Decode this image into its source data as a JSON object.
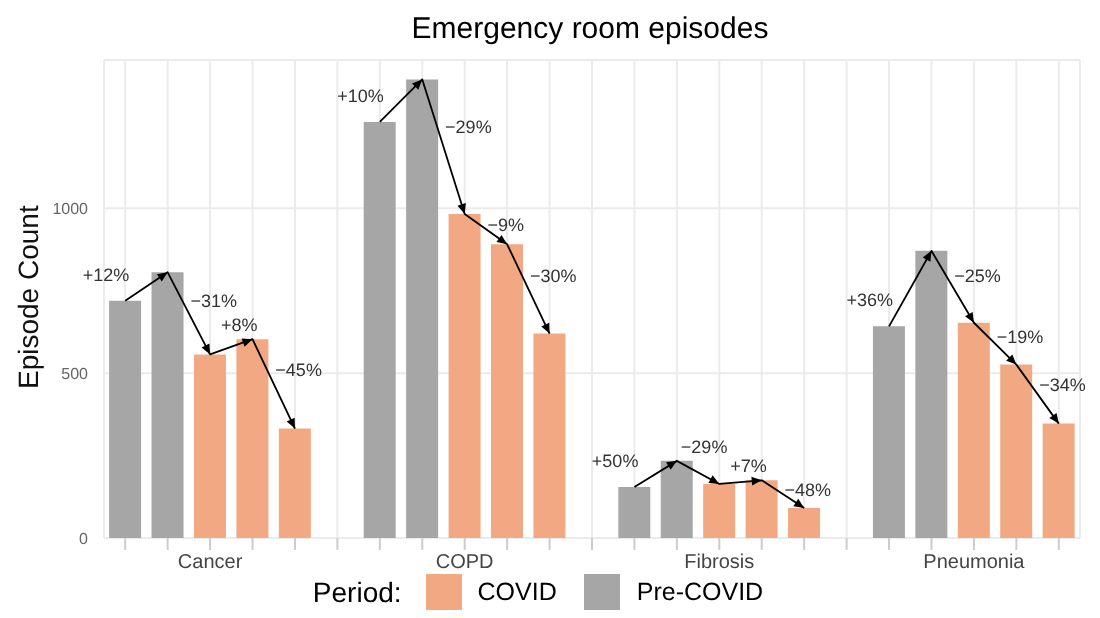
{
  "chart_data": {
    "type": "bar",
    "title": "Emergency room episodes",
    "ylabel": "Episode Count",
    "legend_title": "Period:",
    "categories": [
      null,
      null,
      "Cancer",
      null,
      null,
      null,
      null,
      null,
      "COPD",
      null,
      null,
      null,
      null,
      null,
      "Fibrosis",
      null,
      null,
      null,
      null,
      null,
      "Pneumonia",
      null,
      null
    ],
    "series": [
      {
        "name": "COVID",
        "color": "#f2a882",
        "values": [
          null,
          null,
          557,
          603,
          332,
          null,
          null,
          null,
          983,
          891,
          620,
          null,
          null,
          null,
          164,
          175,
          91,
          null,
          null,
          null,
          653,
          526,
          347
        ]
      },
      {
        "name": "Pre-COVID",
        "color": "#a6a6a6",
        "values": [
          720,
          806,
          null,
          null,
          null,
          null,
          1262,
          1391,
          null,
          null,
          null,
          null,
          155,
          234,
          null,
          null,
          null,
          null,
          642,
          871,
          null,
          null,
          null
        ]
      },
      {
        "type": "line",
        "color": "#000000",
        "values": [
          720,
          806,
          557,
          603,
          332,
          null,
          1262,
          1391,
          983,
          891,
          620,
          null,
          155,
          234,
          164,
          175,
          91,
          null,
          642,
          871,
          653,
          526,
          347
        ]
      }
    ],
    "stacked": true,
    "ylim": [
      0,
      1450
    ],
    "yticks": [
      0,
      500,
      1000
    ],
    "grid": true,
    "legend": "bottom",
    "marker": "none",
    "annotations": [
      "+12%",
      "−31%",
      "+8%",
      "−45%",
      "+10%",
      "−29%",
      "−9%",
      "−30%",
      "+50%",
      "−29%",
      "+7%",
      "−48%",
      "+36%",
      "−25%",
      "−19%",
      "−34%"
    ]
  }
}
